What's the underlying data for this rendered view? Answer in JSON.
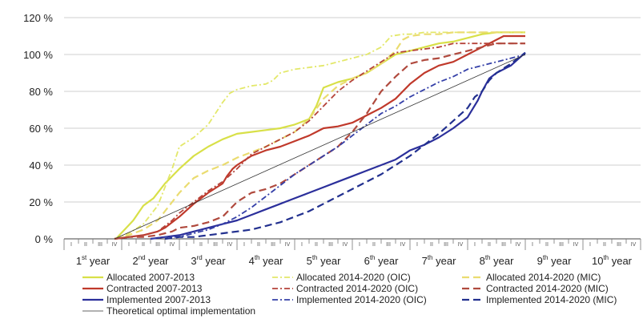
{
  "chart_data": {
    "type": "line",
    "title": "",
    "ylim": [
      0,
      120
    ],
    "yticks": [
      "0 %",
      "20 %",
      "40 %",
      "60 %",
      "80 %",
      "100 %",
      "120 %"
    ],
    "ytick_values": [
      0,
      20,
      40,
      60,
      80,
      100,
      120
    ],
    "grid": "horizontal",
    "quarter_labels": [
      "I",
      "II",
      "III",
      "IV"
    ],
    "years": [
      {
        "num": "1",
        "suffix": "st",
        "word": "year"
      },
      {
        "num": "2",
        "suffix": "nd",
        "word": "year"
      },
      {
        "num": "3",
        "suffix": "rd",
        "word": "year"
      },
      {
        "num": "4",
        "suffix": "th",
        "word": "year"
      },
      {
        "num": "5",
        "suffix": "th",
        "word": "year"
      },
      {
        "num": "6",
        "suffix": "th",
        "word": "year"
      },
      {
        "num": "7",
        "suffix": "th",
        "word": "year"
      },
      {
        "num": "8",
        "suffix": "th",
        "word": "year"
      },
      {
        "num": "9",
        "suffix": "th",
        "word": "year"
      },
      {
        "num": "10",
        "suffix": "th",
        "word": "year"
      }
    ],
    "legend_placement": "bottom",
    "series": [
      {
        "name": "Allocated 2007-2013",
        "color": "#d8e048",
        "style": "solid",
        "points": [
          [
            3.6,
            0
          ],
          [
            4.2,
            5
          ],
          [
            4.8,
            10
          ],
          [
            5.5,
            18
          ],
          [
            6.2,
            22
          ],
          [
            7.0,
            30
          ],
          [
            8.0,
            38
          ],
          [
            9.0,
            45
          ],
          [
            10.0,
            50
          ],
          [
            11.0,
            54
          ],
          [
            12.0,
            57
          ],
          [
            13.0,
            58
          ],
          [
            14.0,
            59
          ],
          [
            15.0,
            60
          ],
          [
            16.0,
            62
          ],
          [
            17.0,
            65
          ],
          [
            17.5,
            72
          ],
          [
            18.0,
            82
          ],
          [
            19.0,
            85
          ],
          [
            20.0,
            87
          ],
          [
            21.0,
            90
          ],
          [
            22.0,
            95
          ],
          [
            23.0,
            100
          ],
          [
            24.0,
            102
          ],
          [
            25.0,
            104
          ],
          [
            26.0,
            106
          ],
          [
            27.0,
            107
          ],
          [
            28.0,
            109
          ],
          [
            29.0,
            111
          ],
          [
            30.0,
            112
          ],
          [
            31.0,
            112
          ],
          [
            32.0,
            112
          ]
        ]
      },
      {
        "name": "Allocated 2014-2020 (OIC)",
        "color": "#e3e86a",
        "style": "dashdot",
        "points": [
          [
            3.5,
            0
          ],
          [
            4.5,
            3
          ],
          [
            5.5,
            8
          ],
          [
            6.5,
            18
          ],
          [
            7.5,
            38
          ],
          [
            8.0,
            50
          ],
          [
            9.0,
            55
          ],
          [
            10.0,
            62
          ],
          [
            11.0,
            74
          ],
          [
            11.5,
            79
          ],
          [
            12.0,
            81
          ],
          [
            13.0,
            83
          ],
          [
            14.0,
            84
          ],
          [
            14.5,
            86
          ],
          [
            15.0,
            90
          ],
          [
            16.0,
            92
          ],
          [
            17.0,
            93
          ],
          [
            18.0,
            94
          ],
          [
            19.0,
            96
          ],
          [
            20.0,
            98
          ],
          [
            21.0,
            100
          ],
          [
            22.0,
            104
          ],
          [
            22.7,
            110
          ],
          [
            23.5,
            111
          ],
          [
            24.0,
            111
          ],
          [
            25.0,
            112
          ],
          [
            26.0,
            112
          ],
          [
            27.0,
            112
          ],
          [
            28.0,
            112
          ],
          [
            29.0,
            112
          ],
          [
            30.0,
            112
          ],
          [
            31.0,
            112
          ],
          [
            32.0,
            112
          ]
        ]
      },
      {
        "name": "Allocated 2014-2020 (MIC)",
        "color": "#eadc70",
        "style": "dashed",
        "points": [
          [
            3.5,
            0
          ],
          [
            4.5,
            2
          ],
          [
            5.5,
            5
          ],
          [
            6.5,
            10
          ],
          [
            7.5,
            20
          ],
          [
            8.0,
            25
          ],
          [
            9.0,
            33
          ],
          [
            10.0,
            37
          ],
          [
            11.0,
            40
          ],
          [
            12.0,
            44
          ],
          [
            13.0,
            47
          ],
          [
            14.0,
            50
          ],
          [
            15.0,
            54
          ],
          [
            16.0,
            58
          ],
          [
            17.0,
            65
          ],
          [
            18.0,
            76
          ],
          [
            19.0,
            83
          ],
          [
            20.0,
            87
          ],
          [
            21.0,
            90
          ],
          [
            22.0,
            95
          ],
          [
            23.0,
            102
          ],
          [
            23.5,
            108
          ],
          [
            24.0,
            110
          ],
          [
            25.0,
            111
          ],
          [
            26.0,
            111
          ],
          [
            27.0,
            112
          ],
          [
            28.0,
            112
          ],
          [
            29.0,
            112
          ],
          [
            30.0,
            112
          ],
          [
            31.0,
            112
          ],
          [
            32.0,
            112
          ]
        ]
      },
      {
        "name": "Contracted 2007-2013",
        "color": "#c0392b",
        "style": "solid",
        "points": [
          [
            3.5,
            0
          ],
          [
            4.5,
            1
          ],
          [
            5.5,
            2
          ],
          [
            6.5,
            4
          ],
          [
            7.0,
            6
          ],
          [
            8.0,
            12
          ],
          [
            9.0,
            19
          ],
          [
            10.0,
            25
          ],
          [
            11.0,
            30
          ],
          [
            11.3,
            34
          ],
          [
            11.7,
            38
          ],
          [
            12.0,
            40
          ],
          [
            13.0,
            45
          ],
          [
            14.0,
            48
          ],
          [
            15.0,
            50
          ],
          [
            16.0,
            53
          ],
          [
            17.0,
            56
          ],
          [
            17.5,
            58
          ],
          [
            18.0,
            60
          ],
          [
            19.0,
            61
          ],
          [
            20.0,
            63
          ],
          [
            21.0,
            67
          ],
          [
            22.0,
            71
          ],
          [
            23.0,
            76
          ],
          [
            23.5,
            80
          ],
          [
            24.0,
            84
          ],
          [
            25.0,
            90
          ],
          [
            26.0,
            94
          ],
          [
            27.0,
            96
          ],
          [
            28.0,
            100
          ],
          [
            29.0,
            104
          ],
          [
            30.0,
            108
          ],
          [
            30.5,
            110
          ],
          [
            31.0,
            110
          ],
          [
            32.0,
            110
          ]
        ]
      },
      {
        "name": "Contracted 2014-2020 (OIC)",
        "color": "#b5433a",
        "style": "dashdot",
        "points": [
          [
            3.5,
            0
          ],
          [
            4.5,
            1
          ],
          [
            5.5,
            2
          ],
          [
            6.5,
            4
          ],
          [
            7.5,
            10
          ],
          [
            8.0,
            14
          ],
          [
            9.0,
            20
          ],
          [
            10.0,
            26
          ],
          [
            11.0,
            31
          ],
          [
            12.0,
            38
          ],
          [
            13.0,
            46
          ],
          [
            14.0,
            50
          ],
          [
            15.0,
            54
          ],
          [
            16.0,
            58
          ],
          [
            17.0,
            64
          ],
          [
            18.0,
            72
          ],
          [
            19.0,
            80
          ],
          [
            20.0,
            86
          ],
          [
            21.0,
            91
          ],
          [
            22.0,
            96
          ],
          [
            23.0,
            101
          ],
          [
            24.0,
            102
          ],
          [
            25.0,
            103
          ],
          [
            26.0,
            104
          ],
          [
            27.0,
            106
          ],
          [
            28.0,
            106
          ],
          [
            29.0,
            106
          ],
          [
            30.0,
            106
          ],
          [
            31.0,
            106
          ],
          [
            32.0,
            106
          ]
        ]
      },
      {
        "name": "Contracted 2014-2020 (MIC)",
        "color": "#b04a3e",
        "style": "dashed",
        "points": [
          [
            3.5,
            0
          ],
          [
            4.5,
            1
          ],
          [
            5.5,
            1
          ],
          [
            6.5,
            2
          ],
          [
            7.5,
            4
          ],
          [
            8.0,
            6
          ],
          [
            9.0,
            7
          ],
          [
            10.0,
            9
          ],
          [
            11.0,
            12
          ],
          [
            12.0,
            20
          ],
          [
            13.0,
            25
          ],
          [
            14.0,
            27
          ],
          [
            15.0,
            30
          ],
          [
            16.0,
            35
          ],
          [
            17.0,
            40
          ],
          [
            18.0,
            45
          ],
          [
            19.0,
            50
          ],
          [
            20.0,
            58
          ],
          [
            21.0,
            68
          ],
          [
            22.0,
            80
          ],
          [
            23.0,
            88
          ],
          [
            24.0,
            95
          ],
          [
            25.0,
            97
          ],
          [
            26.0,
            98
          ],
          [
            27.0,
            100
          ],
          [
            28.0,
            102
          ],
          [
            29.0,
            104
          ],
          [
            30.0,
            106
          ],
          [
            31.0,
            106
          ],
          [
            32.0,
            106
          ]
        ]
      },
      {
        "name": "Implemented 2007-2013",
        "color": "#2b2f9b",
        "style": "solid",
        "points": [
          [
            6.0,
            0
          ],
          [
            7.0,
            1
          ],
          [
            8.0,
            2
          ],
          [
            9.0,
            4
          ],
          [
            10.0,
            6
          ],
          [
            11.0,
            8
          ],
          [
            12.0,
            10
          ],
          [
            13.0,
            13
          ],
          [
            14.0,
            16
          ],
          [
            15.0,
            19
          ],
          [
            16.0,
            22
          ],
          [
            17.0,
            25
          ],
          [
            18.0,
            28
          ],
          [
            19.0,
            31
          ],
          [
            20.0,
            34
          ],
          [
            21.0,
            37
          ],
          [
            22.0,
            40
          ],
          [
            23.0,
            43
          ],
          [
            24.0,
            48
          ],
          [
            25.0,
            51
          ],
          [
            26.0,
            55
          ],
          [
            27.0,
            60
          ],
          [
            28.0,
            66
          ],
          [
            28.7,
            75
          ],
          [
            29.0,
            80
          ],
          [
            29.5,
            87
          ],
          [
            30.0,
            90
          ],
          [
            31.0,
            94
          ],
          [
            32.0,
            101
          ]
        ]
      },
      {
        "name": "Implemented 2014-2020 (OIC)",
        "color": "#3540a8",
        "style": "dashdot",
        "points": [
          [
            6.0,
            0
          ],
          [
            7.0,
            1
          ],
          [
            8.0,
            1
          ],
          [
            9.0,
            3
          ],
          [
            10.0,
            5
          ],
          [
            11.0,
            8
          ],
          [
            12.0,
            12
          ],
          [
            13.0,
            17
          ],
          [
            14.0,
            23
          ],
          [
            15.0,
            29
          ],
          [
            16.0,
            35
          ],
          [
            17.0,
            40
          ],
          [
            18.0,
            45
          ],
          [
            19.0,
            50
          ],
          [
            20.0,
            56
          ],
          [
            21.0,
            62
          ],
          [
            22.0,
            68
          ],
          [
            23.0,
            72
          ],
          [
            24.0,
            77
          ],
          [
            25.0,
            81
          ],
          [
            26.0,
            85
          ],
          [
            27.0,
            88
          ],
          [
            28.0,
            92
          ],
          [
            29.0,
            94
          ],
          [
            30.0,
            96
          ],
          [
            31.0,
            98
          ],
          [
            32.0,
            100
          ]
        ]
      },
      {
        "name": "Implemented 2014-2020 (MIC)",
        "color": "#22308f",
        "style": "dashed",
        "points": [
          [
            7.0,
            0
          ],
          [
            8.0,
            1
          ],
          [
            9.0,
            1
          ],
          [
            10.0,
            2
          ],
          [
            11.0,
            3
          ],
          [
            12.0,
            4
          ],
          [
            13.0,
            5
          ],
          [
            14.0,
            7
          ],
          [
            15.0,
            9
          ],
          [
            16.0,
            12
          ],
          [
            17.0,
            15
          ],
          [
            18.0,
            19
          ],
          [
            19.0,
            23
          ],
          [
            20.0,
            27
          ],
          [
            21.0,
            31
          ],
          [
            22.0,
            35
          ],
          [
            23.0,
            40
          ],
          [
            24.0,
            45
          ],
          [
            25.0,
            51
          ],
          [
            26.0,
            57
          ],
          [
            27.0,
            64
          ],
          [
            28.0,
            71
          ],
          [
            28.5,
            77
          ],
          [
            29.0,
            80
          ],
          [
            29.5,
            86
          ],
          [
            30.0,
            90
          ],
          [
            31.0,
            95
          ],
          [
            32.0,
            101
          ]
        ]
      },
      {
        "name": "Theoretical optimal implementation",
        "color": "#333333",
        "style": "thin",
        "points": [
          [
            3.5,
            0
          ],
          [
            32.0,
            100
          ]
        ]
      }
    ],
    "legend_rows": [
      [
        0,
        1,
        2
      ],
      [
        3,
        4,
        5
      ],
      [
        6,
        7,
        8
      ],
      [
        9
      ]
    ]
  }
}
